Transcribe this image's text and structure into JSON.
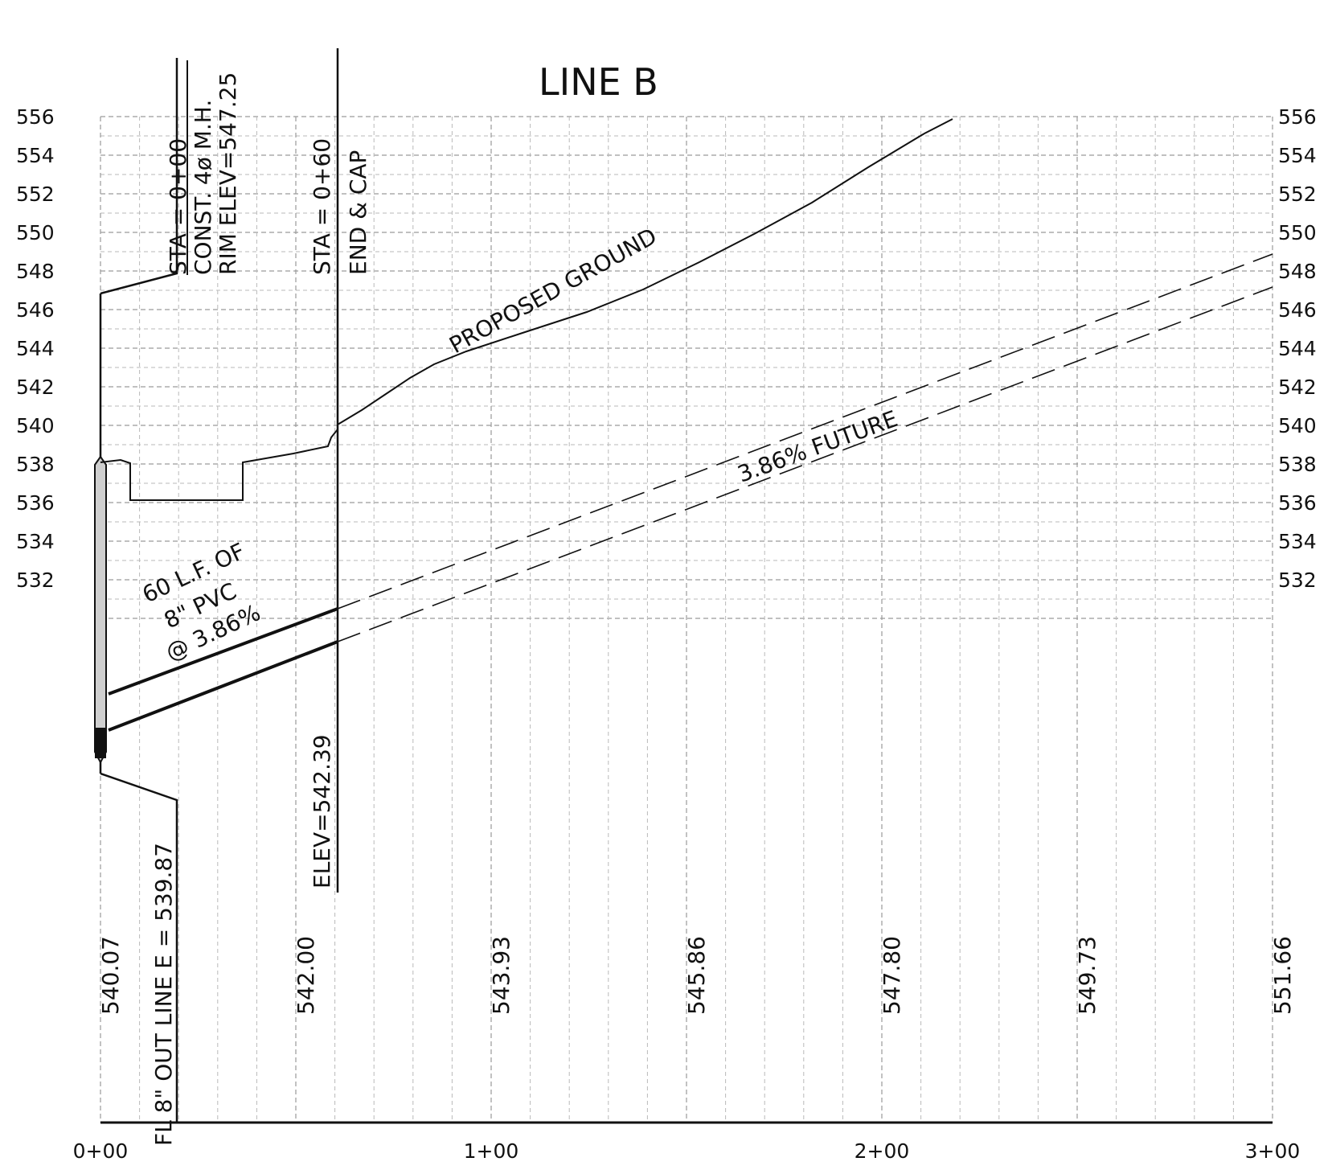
{
  "title": "LINE B",
  "axes": {
    "left_ticks": [
      "556",
      "554",
      "552",
      "550",
      "548",
      "546",
      "544",
      "542",
      "540",
      "538",
      "536",
      "534",
      "532"
    ],
    "right_ticks": [
      "556",
      "554",
      "552",
      "550",
      "548",
      "546",
      "544",
      "542",
      "540",
      "538",
      "536",
      "534",
      "532"
    ],
    "station_ticks": [
      "0+00",
      "1+00",
      "2+00",
      "3+00"
    ]
  },
  "profile_data": {
    "elevation_range": [
      530,
      556
    ],
    "station_range_ft": [
      0,
      300
    ],
    "bottom_elevations": [
      "540.07",
      "542.00",
      "543.93",
      "545.86",
      "547.80",
      "549.73",
      "551.66"
    ],
    "manhole_callout": {
      "line1": "STA  =  0+00",
      "line2": "CONST. 4ø  M.H.",
      "line3": "RIM ELEV=547.25"
    },
    "end_callout": {
      "line1": "STA  =  0+60",
      "line2": "END  &  CAP",
      "elev": "ELEV=542.39"
    },
    "outlet_callout": "FL 8\" OUT LINE E  =  539.87",
    "ground_label": "PROPOSED  GROUND",
    "future_label": "3.86% FUTURE",
    "pipe_label": {
      "line1": "60 L.F. OF",
      "line2": "8\" PVC",
      "line3": "@ 3.86%"
    }
  }
}
